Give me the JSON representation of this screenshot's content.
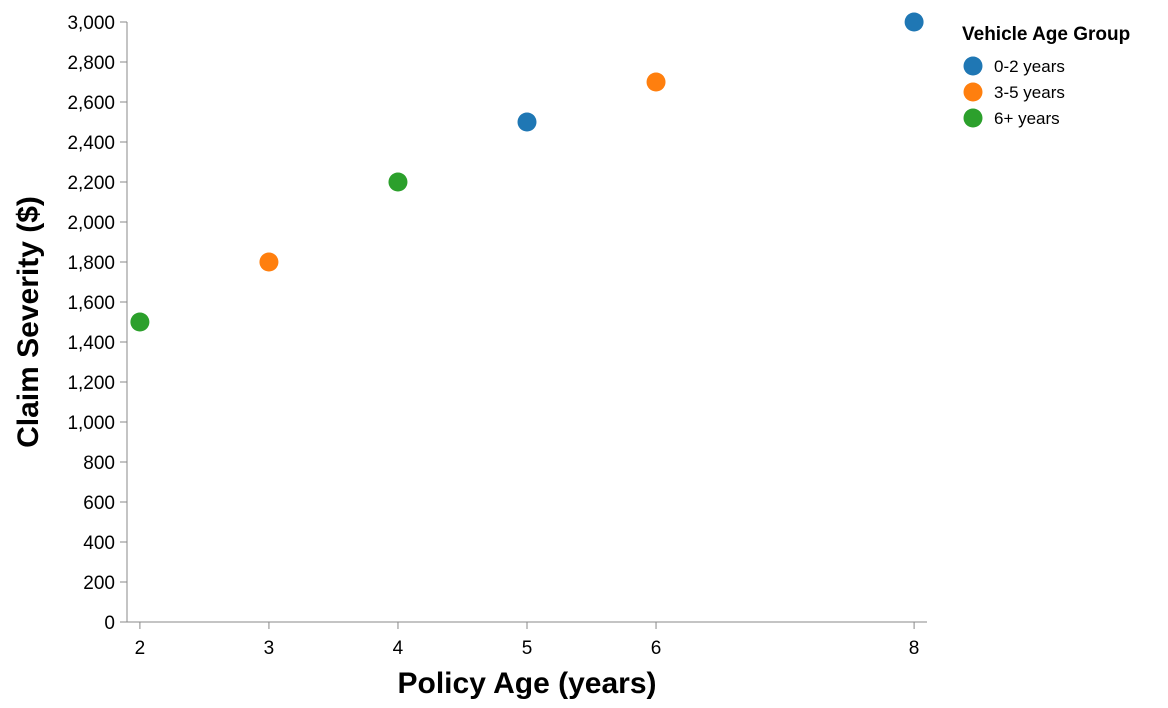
{
  "chart_data": {
    "type": "scatter",
    "xlabel": "Policy Age (years)",
    "ylabel": "Claim Severity ($)",
    "x_ticks": [
      2,
      3,
      4,
      5,
      6,
      8
    ],
    "x_tick_labels": [
      "2",
      "3",
      "4",
      "5",
      "6",
      "8"
    ],
    "ylim": [
      0,
      3000
    ],
    "y_ticks": [
      0,
      200,
      400,
      600,
      800,
      1000,
      1200,
      1400,
      1600,
      1800,
      2000,
      2200,
      2400,
      2600,
      2800,
      3000
    ],
    "y_tick_labels": [
      "0",
      "200",
      "400",
      "600",
      "800",
      "1,000",
      "1,200",
      "1,400",
      "1,600",
      "1,800",
      "2,000",
      "2,200",
      "2,400",
      "2,600",
      "2,800",
      "3,000"
    ],
    "grid": false,
    "legend": {
      "title": "Vehicle Age Group",
      "placement": "right"
    },
    "series": [
      {
        "name": "0-2 years",
        "color": "#1f77b4",
        "points": [
          {
            "x": 5,
            "y": 2500
          },
          {
            "x": 8,
            "y": 3000
          }
        ]
      },
      {
        "name": "3-5 years",
        "color": "#ff7f0e",
        "points": [
          {
            "x": 3,
            "y": 1800
          },
          {
            "x": 6,
            "y": 2700
          }
        ]
      },
      {
        "name": "6+ years",
        "color": "#2ca02c",
        "points": [
          {
            "x": 2,
            "y": 1500
          },
          {
            "x": 4,
            "y": 2200
          }
        ]
      }
    ]
  }
}
